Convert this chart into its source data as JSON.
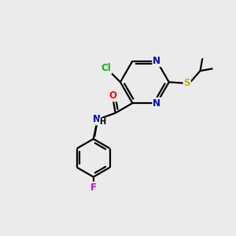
{
  "bg_color": "#ebebeb",
  "atom_colors": {
    "C": "#000000",
    "N": "#0000cc",
    "O": "#ff0000",
    "S": "#bbbb00",
    "Cl": "#00bb00",
    "F": "#dd00dd",
    "H": "#000000"
  },
  "bond_color": "#000000",
  "bond_width": 1.6,
  "font_size": 8.5
}
